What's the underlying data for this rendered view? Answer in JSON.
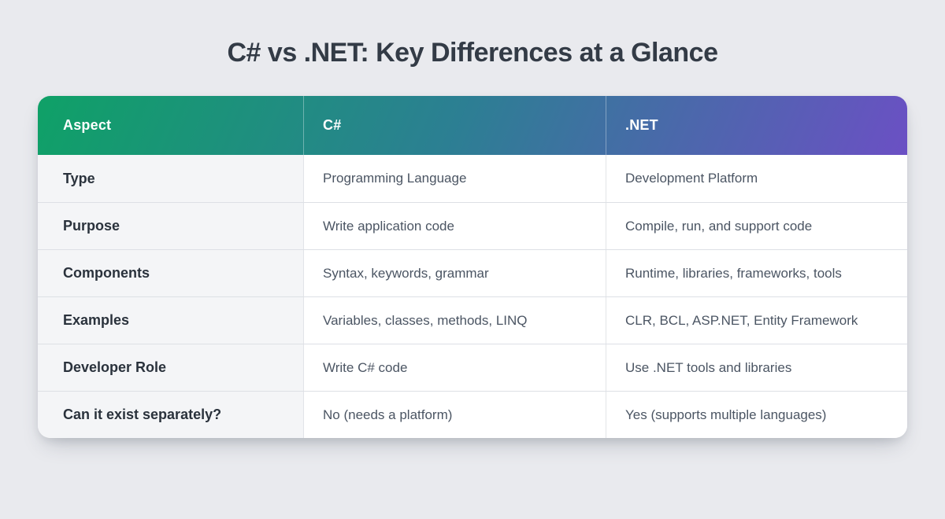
{
  "page": {
    "title": "C# vs .NET: Key Differences at a Glance",
    "background_color": "#e9eaee",
    "title_color": "#333b46"
  },
  "table": {
    "header": {
      "columns": [
        "Aspect",
        "C#",
        ".NET"
      ],
      "gradient_from": "#0fa167",
      "gradient_mid": "#2c7f93",
      "gradient_to": "#6b50c4",
      "text_color": "#ffffff"
    },
    "rows": [
      {
        "aspect": "Type",
        "csharp": "Programming Language",
        "dotnet": "Development Platform"
      },
      {
        "aspect": "Purpose",
        "csharp": "Write application code",
        "dotnet": "Compile, run, and support code"
      },
      {
        "aspect": "Components",
        "csharp": "Syntax, keywords, grammar",
        "dotnet": "Runtime, libraries, frameworks, tools"
      },
      {
        "aspect": "Examples",
        "csharp": "Variables, classes, methods, LINQ",
        "dotnet": "CLR, BCL, ASP.NET, Entity Framework"
      },
      {
        "aspect": "Developer Role",
        "csharp": "Write C# code",
        "dotnet": "Use .NET tools and libraries"
      },
      {
        "aspect": "Can it exist separately?",
        "csharp": "No (needs a platform)",
        "dotnet": "Yes (supports multiple languages)"
      }
    ],
    "colors": {
      "aspect_column_bg": "#f4f5f7",
      "value_cell_bg": "#ffffff",
      "row_border": "#dde0e5",
      "column_border": "#e2e4e8",
      "aspect_text": "#2a323c",
      "value_text": "#4b5563"
    }
  }
}
